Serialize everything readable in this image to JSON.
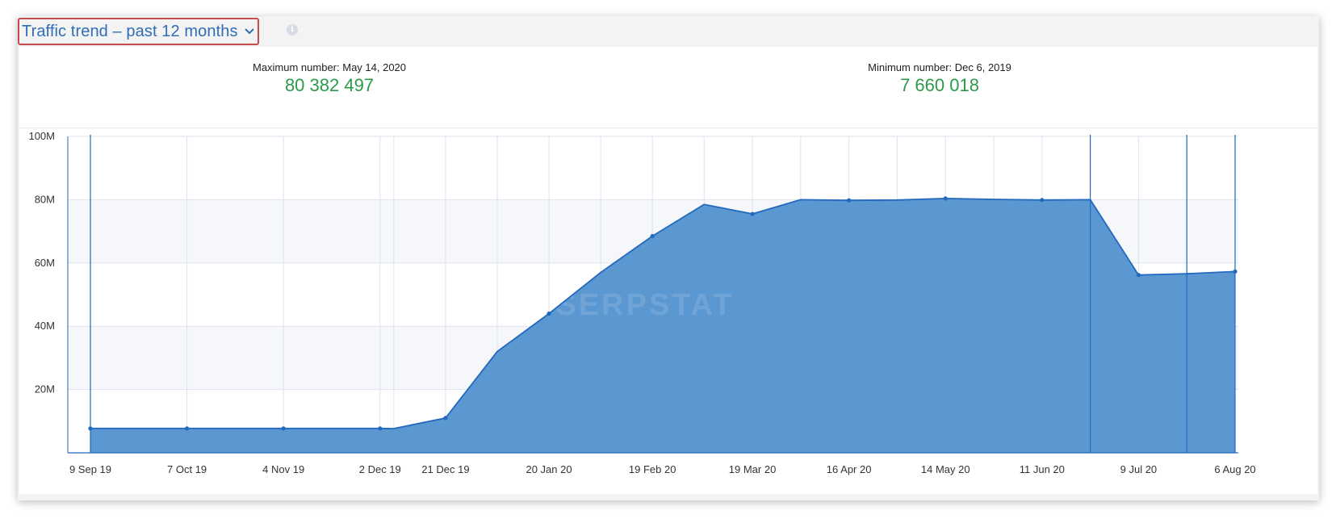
{
  "header": {
    "title": "Traffic trend – past 12 months",
    "info_icon": "info-icon",
    "dropdown_icon": "chevron-down-icon"
  },
  "stats": {
    "max": {
      "label": "Maximum number: May 14, 2020",
      "value": "80 382 497"
    },
    "min": {
      "label": "Minimum number: Dec 6, 2019",
      "value": "7 660 018"
    }
  },
  "colors": {
    "title": "#2f6db5",
    "highlight_border": "#c94a4f",
    "stat_value": "#2b9a4a",
    "area_fill": "#5b97d1",
    "line": "#2369be",
    "grid": "#dde2ec"
  },
  "watermark": "SERPSTAT",
  "chart_data": {
    "type": "area",
    "xlabel": "",
    "ylabel": "",
    "ylim": [
      0,
      100000000
    ],
    "y_ticks": [
      {
        "value": 20000000,
        "label": "20M"
      },
      {
        "value": 40000000,
        "label": "40M"
      },
      {
        "value": 60000000,
        "label": "60M"
      },
      {
        "value": 80000000,
        "label": "80M"
      },
      {
        "value": 100000000,
        "label": "100M"
      }
    ],
    "x_tick_labels": [
      "9 Sep 19",
      "7 Oct 19",
      "4 Nov 19",
      "2 Dec 19",
      "21 Dec 19",
      "20 Jan 20",
      "19 Feb 20",
      "19 Mar 20",
      "16 Apr 20",
      "14 May 20",
      "11 Jun 20",
      "9 Jul 20",
      "6 Aug 20"
    ],
    "series": [
      {
        "points": [
          {
            "x": "2019-09-09",
            "y": 7700000,
            "marker": true
          },
          {
            "x": "2019-10-07",
            "y": 7700000,
            "marker": true
          },
          {
            "x": "2019-11-04",
            "y": 7700000,
            "marker": true
          },
          {
            "x": "2019-12-02",
            "y": 7700000,
            "marker": true
          },
          {
            "x": "2019-12-06",
            "y": 7660018,
            "marker": false
          },
          {
            "x": "2019-12-21",
            "y": 11000000,
            "marker": true
          },
          {
            "x": "2020-01-05",
            "y": 32000000,
            "marker": false
          },
          {
            "x": "2020-01-20",
            "y": 44000000,
            "marker": true
          },
          {
            "x": "2020-02-04",
            "y": 57000000,
            "marker": false
          },
          {
            "x": "2020-02-19",
            "y": 68500000,
            "marker": true
          },
          {
            "x": "2020-03-05",
            "y": 78500000,
            "marker": false
          },
          {
            "x": "2020-03-19",
            "y": 75500000,
            "marker": true
          },
          {
            "x": "2020-04-02",
            "y": 80000000,
            "marker": false
          },
          {
            "x": "2020-04-16",
            "y": 79800000,
            "marker": true
          },
          {
            "x": "2020-04-30",
            "y": 79900000,
            "marker": false
          },
          {
            "x": "2020-05-14",
            "y": 80382497,
            "marker": true
          },
          {
            "x": "2020-05-28",
            "y": 80100000,
            "marker": false
          },
          {
            "x": "2020-06-11",
            "y": 79900000,
            "marker": true
          },
          {
            "x": "2020-06-25",
            "y": 80000000,
            "marker": false
          },
          {
            "x": "2020-07-09",
            "y": 56200000,
            "marker": true
          },
          {
            "x": "2020-07-23",
            "y": 56600000,
            "marker": false
          },
          {
            "x": "2020-08-06",
            "y": 57300000,
            "marker": true
          }
        ]
      }
    ],
    "vertical_markers": [
      "2019-09-09",
      "2020-06-25",
      "2020-07-23",
      "2020-08-06"
    ],
    "grid": true,
    "legend": "none"
  }
}
